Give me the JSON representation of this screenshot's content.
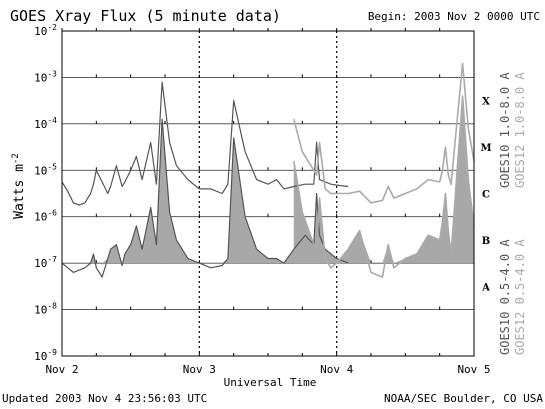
{
  "chart_data": {
    "type": "line",
    "title": "GOES Xray Flux (5 minute data)",
    "begin_label": "Begin:  2003 Nov 2 0000 UTC",
    "updated_label": "Updated 2003 Nov  4 23:56:03 UTC",
    "credit": "NOAA/SEC Boulder, CO USA",
    "xlabel": "Universal Time",
    "ylabel": "Watts m",
    "ylabel_sup": "-2",
    "x_range_hours": [
      0,
      72
    ],
    "x_ticks": [
      {
        "hour": 0,
        "label": "Nov 2"
      },
      {
        "hour": 24,
        "label": "Nov 3"
      },
      {
        "hour": 48,
        "label": "Nov 4"
      },
      {
        "hour": 72,
        "label": "Nov 5"
      }
    ],
    "y_scale": "log",
    "y_range_exp": [
      -9,
      -2
    ],
    "y_ticks": [
      {
        "exp": -2,
        "base": "10",
        "sup": "-2"
      },
      {
        "exp": -3,
        "base": "10",
        "sup": "-3"
      },
      {
        "exp": -4,
        "base": "10",
        "sup": "-4"
      },
      {
        "exp": -5,
        "base": "10",
        "sup": "-5"
      },
      {
        "exp": -6,
        "base": "10",
        "sup": "-6"
      },
      {
        "exp": -7,
        "base": "10",
        "sup": "-7"
      },
      {
        "exp": -8,
        "base": "10",
        "sup": "-8"
      },
      {
        "exp": -9,
        "base": "10",
        "sup": "-9"
      }
    ],
    "class_levels": [
      {
        "label": "A",
        "exp": -7.5
      },
      {
        "label": "B",
        "exp": -6.5
      },
      {
        "label": "C",
        "exp": -5.5
      },
      {
        "label": "M",
        "exp": -4.5
      },
      {
        "label": "X",
        "exp": -3.5
      }
    ],
    "fill_threshold_exp": -7,
    "grid": "horizontal lines at each decade, dotted vertical lines at day boundaries",
    "legend": [
      {
        "label": "GOES10 1.0-8.0 A",
        "color": "#555555"
      },
      {
        "label": "GOES12 1.0-8.0 A",
        "color": "#aaaaaa"
      },
      {
        "label": "GOES10 0.5-4.0 A",
        "color": "#555555"
      },
      {
        "label": "GOES12 0.5-4.0 A",
        "color": "#aaaaaa"
      }
    ],
    "series": [
      {
        "name": "GOES10 1.0-8.0 A",
        "color": "#555555",
        "x": [
          0,
          1,
          2,
          3,
          4,
          5,
          5.5,
          6,
          7,
          8,
          8.5,
          9.5,
          10.5,
          11,
          12,
          13,
          14,
          15.5,
          16.5,
          17.5,
          18.8,
          20,
          22,
          24,
          26,
          28,
          29,
          30,
          32,
          34,
          36,
          37.5,
          38.8,
          40.5,
          42.5,
          44,
          44.5,
          45,
          46,
          47,
          48,
          50
        ],
        "y_exp": [
          -5.25,
          -5.45,
          -5.7,
          -5.75,
          -5.7,
          -5.5,
          -5.3,
          -5.0,
          -5.25,
          -5.5,
          -5.35,
          -4.9,
          -5.35,
          -5.25,
          -5.0,
          -4.7,
          -5.2,
          -4.4,
          -5.3,
          -3.1,
          -4.4,
          -4.9,
          -5.2,
          -5.4,
          -5.4,
          -5.5,
          -5.3,
          -3.5,
          -4.6,
          -5.2,
          -5.3,
          -5.2,
          -5.4,
          -5.35,
          -5.3,
          -5.3,
          -4.4,
          -5.2,
          -5.25,
          -5.3,
          -5.32,
          -5.35
        ]
      },
      {
        "name": "GOES12 1.0-8.0 A",
        "color": "#aaaaaa",
        "x": [
          40.5,
          42,
          44,
          44.5,
          45,
          46,
          47,
          48,
          50,
          52,
          54,
          56,
          57,
          58,
          60,
          62,
          64,
          66,
          66.5,
          67,
          67.5,
          68,
          69,
          70,
          71,
          72
        ],
        "y_exp": [
          -3.9,
          -4.6,
          -5.0,
          -5.1,
          -4.4,
          -5.4,
          -5.5,
          -5.5,
          -5.5,
          -5.45,
          -5.7,
          -5.65,
          -5.35,
          -5.6,
          -5.5,
          -5.4,
          -5.2,
          -5.25,
          -5.0,
          -4.5,
          -5.1,
          -5.3,
          -4.0,
          -2.7,
          -4.1,
          -4.8
        ]
      },
      {
        "name": "GOES10 0.5-4.0 A",
        "color": "#555555",
        "x": [
          0,
          1,
          2,
          3,
          4,
          5,
          5.5,
          6,
          7,
          8,
          8.5,
          9.5,
          10.5,
          11,
          12,
          13,
          14,
          15.5,
          16.5,
          17.5,
          18.8,
          20,
          22,
          24,
          26,
          28,
          29,
          30,
          32,
          34,
          36,
          37.5,
          38.8,
          40.5,
          42.5,
          44,
          44.5,
          45,
          46,
          47,
          48,
          50
        ],
        "y_exp": [
          -7.0,
          -7.1,
          -7.2,
          -7.15,
          -7.1,
          -7.0,
          -6.8,
          -7.1,
          -7.3,
          -6.9,
          -6.7,
          -6.6,
          -7.05,
          -6.8,
          -6.6,
          -6.2,
          -6.7,
          -5.8,
          -6.6,
          -3.9,
          -5.9,
          -6.5,
          -6.9,
          -7.0,
          -7.1,
          -7.05,
          -6.9,
          -4.3,
          -6.0,
          -6.7,
          -6.9,
          -6.9,
          -7.0,
          -6.7,
          -6.4,
          -6.6,
          -5.5,
          -6.4,
          -6.7,
          -6.8,
          -6.9,
          -7.0
        ]
      },
      {
        "name": "GOES12 0.5-4.0 A",
        "color": "#aaaaaa",
        "x": [
          40.5,
          42,
          44,
          44.5,
          45,
          46,
          47,
          48,
          50,
          52,
          54,
          56,
          57,
          58,
          60,
          62,
          64,
          66,
          66.5,
          67,
          67.5,
          68,
          69,
          70,
          71,
          72
        ],
        "y_exp": [
          -4.8,
          -5.9,
          -6.6,
          -6.7,
          -5.6,
          -6.9,
          -7.1,
          -7.0,
          -6.7,
          -6.3,
          -7.2,
          -7.3,
          -6.6,
          -7.1,
          -6.9,
          -6.8,
          -6.4,
          -6.5,
          -6.1,
          -5.5,
          -6.3,
          -6.8,
          -5.1,
          -3.4,
          -5.2,
          -6.2
        ]
      }
    ]
  }
}
